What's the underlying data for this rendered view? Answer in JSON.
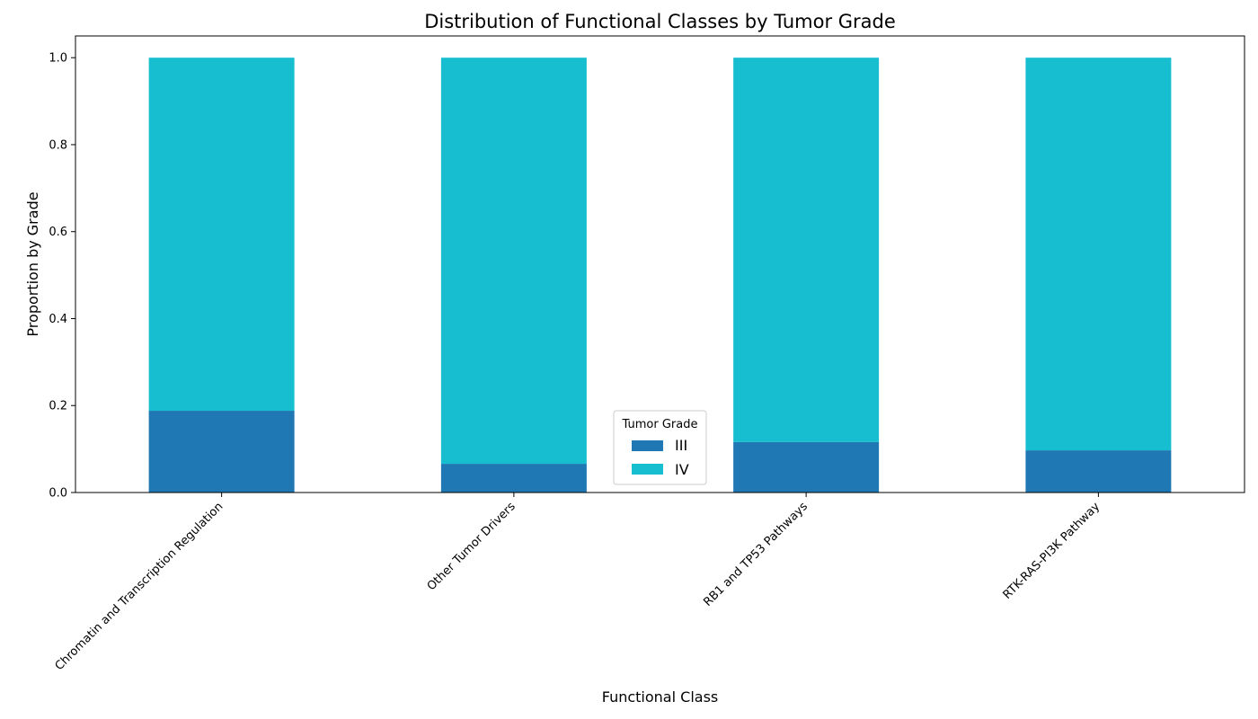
{
  "chart_data": {
    "type": "bar",
    "stacked": true,
    "title": "Distribution of Functional Classes by Tumor Grade",
    "xlabel": "Functional Class",
    "ylabel": "Proportion by Grade",
    "ylim": [
      0,
      1.05
    ],
    "yticks": [
      "0.0",
      "0.2",
      "0.4",
      "0.6",
      "0.8",
      "1.0"
    ],
    "categories": [
      "Chromatin and Transcription Regulation",
      "Other Tumor Drivers",
      "RB1 and TP53 Pathways",
      "RTK-RAS-PI3K Pathway"
    ],
    "series": [
      {
        "name": "III",
        "color": "#1f77b4",
        "values": [
          0.188,
          0.066,
          0.116,
          0.097
        ]
      },
      {
        "name": "IV",
        "color": "#17becf",
        "values": [
          0.812,
          0.934,
          0.884,
          0.903
        ]
      }
    ],
    "legend": {
      "title": "Tumor Grade",
      "position": "bottom-center"
    },
    "grid": false
  }
}
